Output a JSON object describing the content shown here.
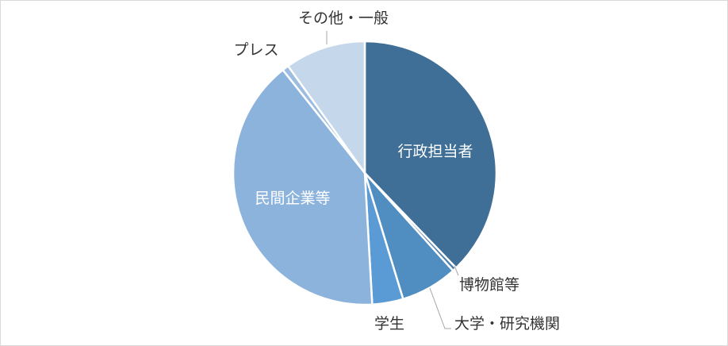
{
  "chart_data": {
    "type": "pie",
    "start_angle": "top, clockwise",
    "slices": [
      {
        "label": "行政担当者",
        "value": 37.8,
        "color": "#3f6f96",
        "label_inside": true
      },
      {
        "label": "博物館等",
        "value": 0.5,
        "color": "#4a7fb0",
        "label_inside": false
      },
      {
        "label": "大学・研究機関",
        "value": 7.0,
        "color": "#508dc0",
        "label_inside": false
      },
      {
        "label": "学生",
        "value": 3.8,
        "color": "#5b9bd5",
        "label_inside": false
      },
      {
        "label": "民間企業等",
        "value": 40.2,
        "color": "#8cb3dc",
        "label_inside": true
      },
      {
        "label": "プレス",
        "value": 0.8,
        "color": "#9dbde0",
        "label_inside": false
      },
      {
        "label": "その他・一般",
        "value": 9.9,
        "color": "#c5d7eb",
        "label_inside": false
      }
    ]
  }
}
